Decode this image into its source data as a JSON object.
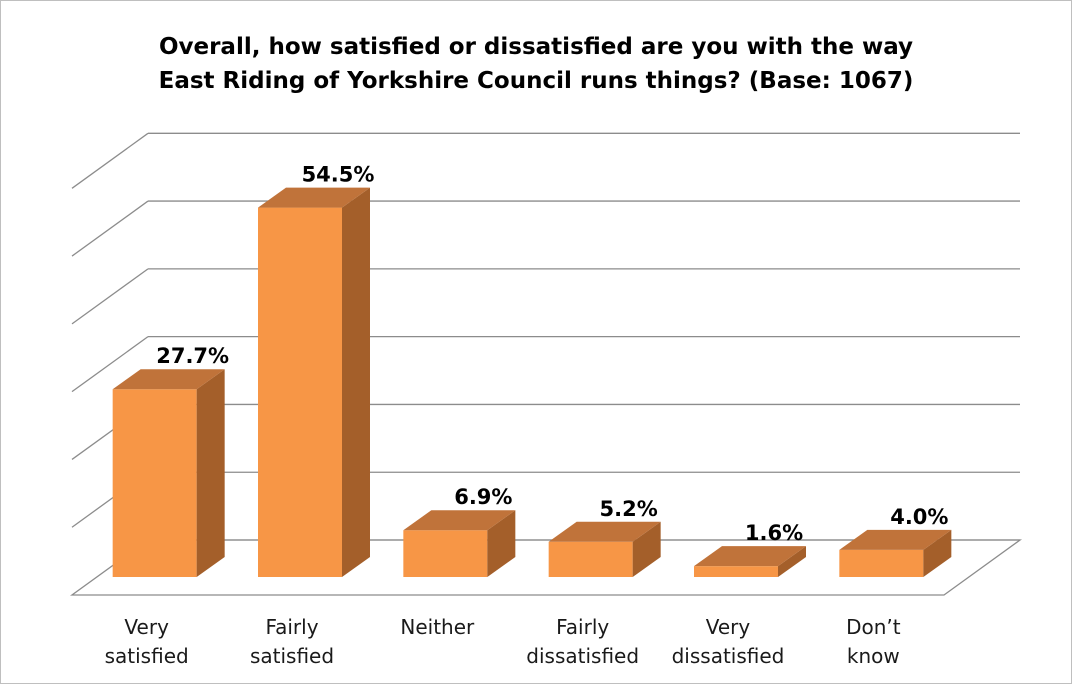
{
  "chart_data": {
    "type": "bar",
    "title_line1": "Overall, how satisfied or dissatisfied are you with the way",
    "title_line2": "East Riding of Yorkshire Council runs things? (Base: 1067)",
    "categories": [
      [
        "Very",
        "satisfied"
      ],
      [
        "Fairly",
        "satisfied"
      ],
      [
        "Neither"
      ],
      [
        "Fairly",
        "dissatisfied"
      ],
      [
        "Very",
        "dissatisfied"
      ],
      [
        "Don’t",
        "know"
      ]
    ],
    "values": [
      27.7,
      54.5,
      6.9,
      5.2,
      1.6,
      4.0
    ],
    "value_labels": [
      "27.7%",
      "54.5%",
      "6.9%",
      "5.2%",
      "1.6%",
      "4.0%"
    ],
    "ylim": [
      0,
      60
    ],
    "grid": true,
    "legend": "none",
    "colors": {
      "front": "#f79646",
      "side": "#a45f2a",
      "top": "#c0733a",
      "grid": "#8c8c8c"
    }
  }
}
